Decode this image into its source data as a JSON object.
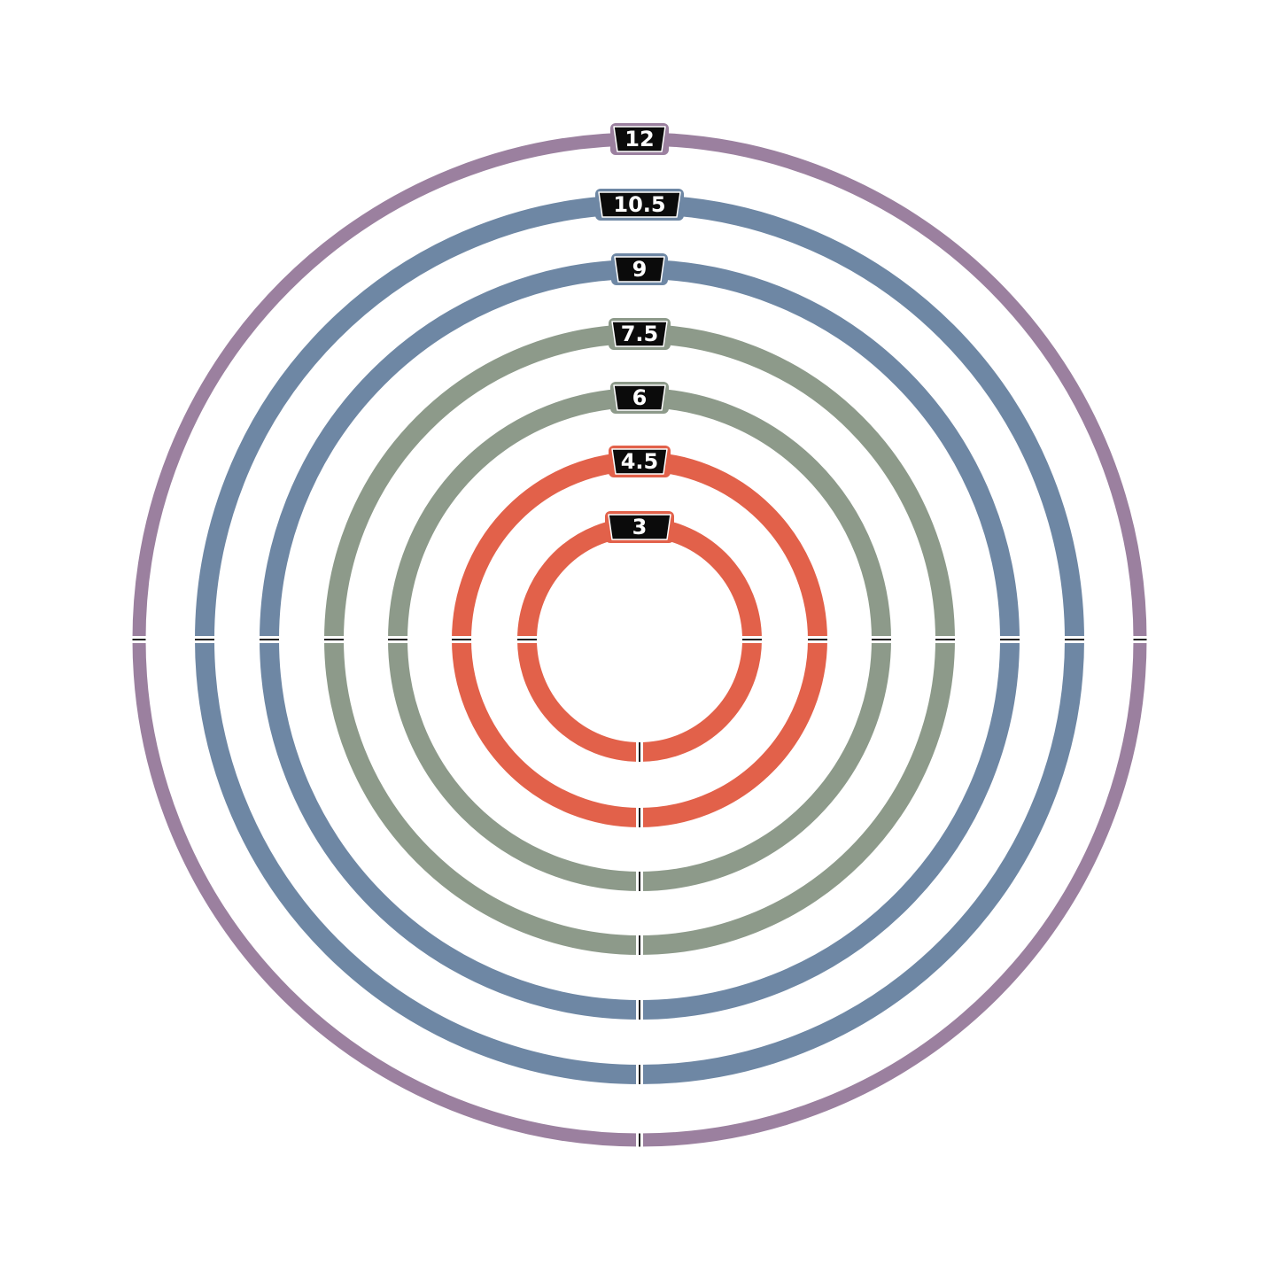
{
  "rings": [
    {
      "label": "12",
      "color": "#9b809f"
    },
    {
      "label": "10.5",
      "color": "#6e87a4"
    },
    {
      "label": "9",
      "color": "#6e87a4"
    },
    {
      "label": "7.5",
      "color": "#8d9a8a"
    },
    {
      "label": "6",
      "color": "#8d9a8a"
    },
    {
      "label": "4.5",
      "color": "#e2614a"
    },
    {
      "label": "3",
      "color": "#e2614a"
    }
  ]
}
